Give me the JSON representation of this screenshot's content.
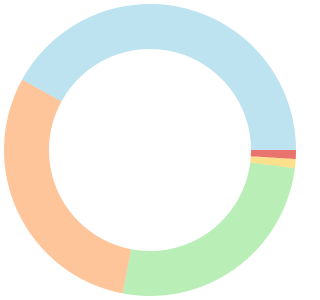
{
  "chart_data": {
    "type": "donut",
    "values": [
      1,
      1,
      26,
      30,
      42
    ],
    "colors": [
      "#e8736f",
      "#fde08c",
      "#b9eeb6",
      "#fec59b",
      "#bde2f0"
    ]
  }
}
